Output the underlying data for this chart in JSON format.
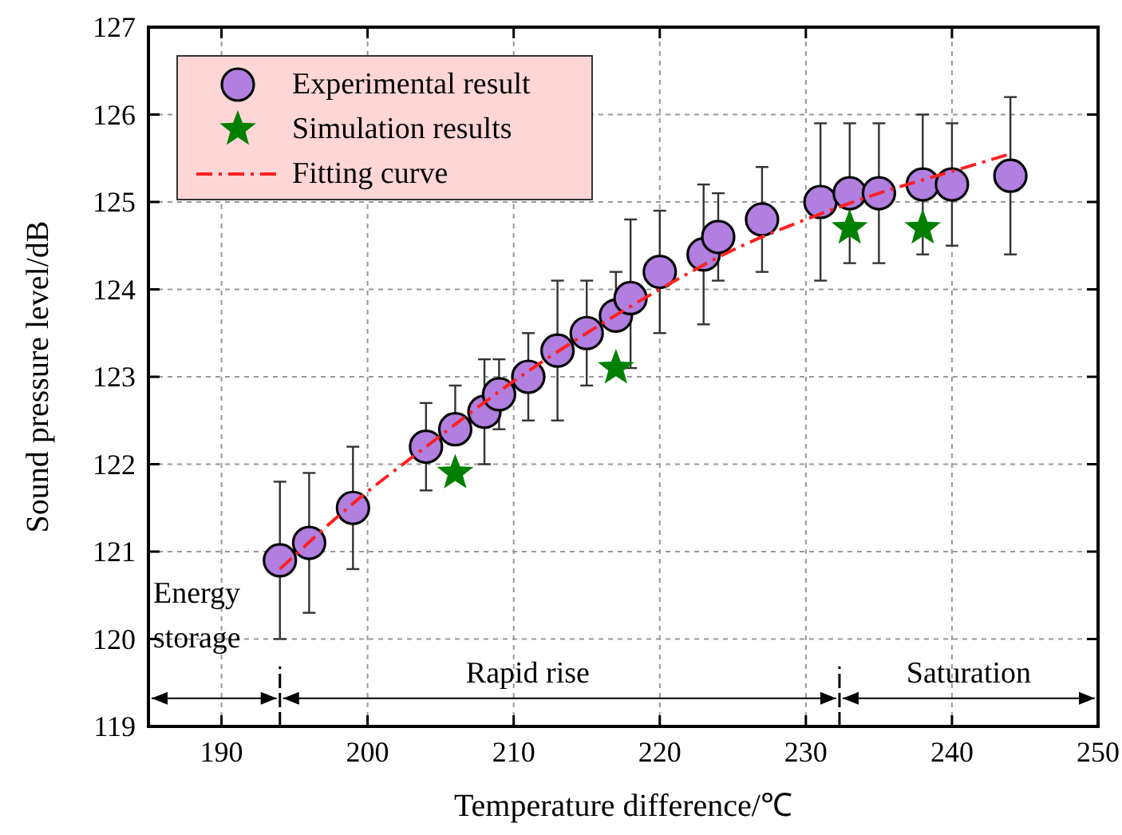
{
  "chart_data": {
    "type": "scatter",
    "xlabel": "Temperature difference/℃",
    "ylabel": "Sound pressure level/dB",
    "xlim": [
      185,
      250
    ],
    "xticks": [
      190,
      200,
      210,
      220,
      230,
      240,
      250
    ],
    "ylim": [
      119,
      127
    ],
    "yticks": [
      119,
      120,
      121,
      122,
      123,
      124,
      125,
      126,
      127
    ],
    "grid": true,
    "legend": "top left",
    "series": [
      {
        "name": "Experimental result",
        "marker": "circle",
        "color": "#b07fe0",
        "x": [
          194,
          196,
          199,
          204,
          206,
          208,
          209,
          211,
          213,
          215,
          217,
          218,
          220,
          223,
          224,
          227,
          231,
          233,
          235,
          238,
          240,
          244
        ],
        "values": [
          120.9,
          121.1,
          121.5,
          122.2,
          122.4,
          122.6,
          122.8,
          123.0,
          123.3,
          123.5,
          123.7,
          123.9,
          124.2,
          124.4,
          124.6,
          124.8,
          125.0,
          125.1,
          125.1,
          125.2,
          125.2,
          125.3
        ],
        "errors": [
          [
            120.0,
            121.8
          ],
          [
            120.3,
            121.9
          ],
          [
            120.8,
            122.2
          ],
          [
            121.7,
            122.7
          ],
          [
            122.4,
            122.9
          ],
          [
            122.0,
            123.2
          ],
          [
            122.4,
            123.2
          ],
          [
            122.5,
            123.5
          ],
          [
            122.5,
            124.1
          ],
          [
            122.9,
            124.1
          ],
          [
            123.7,
            124.2
          ],
          [
            123.1,
            124.8
          ],
          [
            123.5,
            124.9
          ],
          [
            123.6,
            125.2
          ],
          [
            124.1,
            125.1
          ],
          [
            124.2,
            125.4
          ],
          [
            124.1,
            125.9
          ],
          [
            124.3,
            125.9
          ],
          [
            124.3,
            125.9
          ],
          [
            124.4,
            126.0
          ],
          [
            124.5,
            125.9
          ],
          [
            124.4,
            126.2
          ]
        ]
      },
      {
        "name": "Simulation results",
        "marker": "star",
        "color": "#008000",
        "x": [
          206,
          217,
          233,
          238
        ],
        "values": [
          121.9,
          123.1,
          124.7,
          124.7
        ]
      },
      {
        "name": "Fitting curve",
        "type": "line",
        "marker": "none",
        "line_style": "dashdot",
        "color": "#ff2020",
        "x": [
          194,
          199,
          204,
          210,
          215,
          220,
          225,
          230,
          235,
          240,
          244
        ],
        "values": [
          120.8,
          121.55,
          122.2,
          122.95,
          123.5,
          124.0,
          124.45,
          124.8,
          125.1,
          125.35,
          125.55
        ]
      }
    ],
    "ref_lines": [
      {
        "axis": "x",
        "value": 194,
        "line_style": "dashed",
        "color": "#000000"
      },
      {
        "axis": "x",
        "value": 232.3,
        "line_style": "dashed",
        "color": "#000000"
      }
    ],
    "annotations": [
      "Energy storage",
      "Rapid rise",
      "Saturation"
    ]
  }
}
